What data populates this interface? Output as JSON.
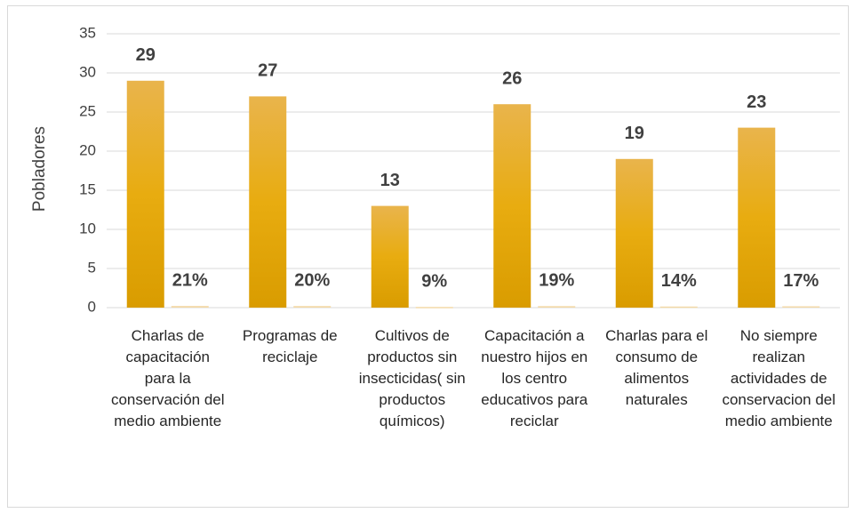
{
  "chart_data": {
    "type": "bar",
    "y_label": "Pobladores",
    "categories": [
      "Charlas de capacitación para la conservación del medio ambiente",
      "Programas de reciclaje",
      "Cultivos de productos sin insecticidas( sin productos químicos)",
      "Capacitación a nuestro hijos en los centro educativos para reciclar",
      "Charlas para el consumo de alimentos naturales",
      "No siempre realizan actividades de conservacion del medio ambiente"
    ],
    "series": [
      {
        "color": "#e3a414",
        "values": [
          29,
          27,
          13,
          26,
          19,
          23
        ]
      },
      {
        "color": "#f3d9a8",
        "values": [
          0.21,
          0.2,
          0.09,
          0.19,
          0.14,
          0.17
        ],
        "value_labels": [
          "21%",
          "20%",
          "9%",
          "19%",
          "14%",
          "17%"
        ]
      }
    ],
    "ylim": [
      0,
      35
    ],
    "yticks": [
      0,
      5,
      10,
      15,
      20,
      25,
      30,
      35
    ],
    "grid": true
  }
}
